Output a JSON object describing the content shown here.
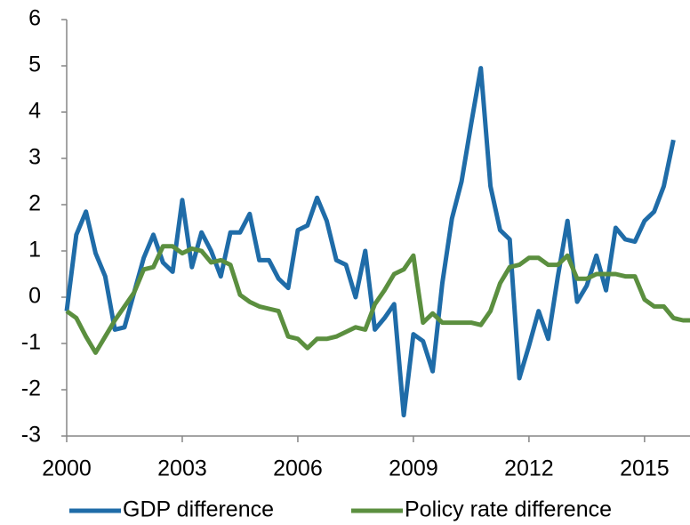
{
  "chart_data": {
    "type": "line",
    "xlim": [
      2000,
      2016.18
    ],
    "xticks": [
      2000,
      2003,
      2006,
      2009,
      2012,
      2015
    ],
    "ylim": [
      -3,
      6
    ],
    "yticks": [
      -3,
      -2,
      -1,
      0,
      1,
      2,
      3,
      4,
      5,
      6
    ],
    "grid": false,
    "legend": "bottom",
    "series": [
      {
        "name": "GDP difference",
        "color": "#1f6ca8",
        "x": [
          2000.0,
          2000.25,
          2000.5,
          2000.75,
          2001.0,
          2001.25,
          2001.5,
          2001.75,
          2002.0,
          2002.25,
          2002.5,
          2002.75,
          2003.0,
          2003.25,
          2003.5,
          2003.75,
          2004.0,
          2004.25,
          2004.5,
          2004.75,
          2005.0,
          2005.25,
          2005.5,
          2005.75,
          2006.0,
          2006.25,
          2006.5,
          2006.75,
          2007.0,
          2007.25,
          2007.5,
          2007.75,
          2008.0,
          2008.25,
          2008.5,
          2008.75,
          2009.0,
          2009.25,
          2009.5,
          2009.75,
          2010.0,
          2010.25,
          2010.5,
          2010.75,
          2011.0,
          2011.25,
          2011.5,
          2011.75,
          2012.0,
          2012.25,
          2012.5,
          2012.75,
          2013.0,
          2013.25,
          2013.5,
          2013.75,
          2014.0,
          2014.25,
          2014.5,
          2014.75,
          2015.0,
          2015.25,
          2015.5,
          2015.75
        ],
        "values": [
          -0.3,
          1.35,
          1.85,
          0.95,
          0.45,
          -0.7,
          -0.65,
          0.1,
          0.85,
          1.35,
          0.75,
          0.55,
          2.1,
          0.65,
          1.4,
          1.0,
          0.45,
          1.4,
          1.4,
          1.8,
          0.8,
          0.8,
          0.4,
          0.2,
          1.45,
          1.55,
          2.15,
          1.65,
          0.8,
          0.7,
          0.0,
          1.0,
          -0.7,
          -0.45,
          -0.15,
          -2.55,
          -0.8,
          -0.95,
          -1.6,
          0.3,
          1.7,
          2.5,
          3.75,
          4.95,
          2.4,
          1.45,
          1.25,
          -1.75,
          -1.05,
          -0.3,
          -0.9,
          0.45,
          1.65,
          -0.1,
          0.25,
          0.9,
          0.15,
          1.5,
          1.25,
          1.2,
          1.65,
          1.85,
          2.4,
          3.4
        ]
      },
      {
        "name": "Policy rate difference",
        "color": "#5b8f3f",
        "x": [
          2000.0,
          2000.25,
          2000.5,
          2000.75,
          2001.0,
          2001.25,
          2001.5,
          2001.75,
          2002.0,
          2002.25,
          2002.5,
          2002.75,
          2003.0,
          2003.25,
          2003.5,
          2003.75,
          2004.0,
          2004.25,
          2004.5,
          2004.75,
          2005.0,
          2005.25,
          2005.5,
          2005.75,
          2006.0,
          2006.25,
          2006.5,
          2006.75,
          2007.0,
          2007.25,
          2007.5,
          2007.75,
          2008.0,
          2008.25,
          2008.5,
          2008.75,
          2009.0,
          2009.1,
          2009.25,
          2009.5,
          2009.75,
          2010.0,
          2010.25,
          2010.5,
          2010.75,
          2011.0,
          2011.25,
          2011.5,
          2011.75,
          2012.0,
          2012.25,
          2012.5,
          2012.75,
          2013.0,
          2013.25,
          2013.5,
          2013.75,
          2014.0,
          2014.25,
          2014.5,
          2014.75,
          2015.0,
          2015.25,
          2015.5,
          2015.75,
          2016.0,
          2016.18
        ],
        "values": [
          -0.3,
          -0.45,
          -0.85,
          -1.2,
          -0.85,
          -0.5,
          -0.2,
          0.1,
          0.6,
          0.65,
          1.1,
          1.1,
          0.95,
          1.05,
          1.0,
          0.75,
          0.8,
          0.7,
          0.05,
          -0.1,
          -0.2,
          -0.25,
          -0.3,
          -0.85,
          -0.9,
          -1.1,
          -0.9,
          -0.9,
          -0.85,
          -0.75,
          -0.65,
          -0.7,
          -0.15,
          0.15,
          0.5,
          0.6,
          0.9,
          0.3,
          -0.55,
          -0.35,
          -0.55,
          -0.55,
          -0.55,
          -0.55,
          -0.6,
          -0.3,
          0.3,
          0.65,
          0.7,
          0.85,
          0.85,
          0.7,
          0.7,
          0.9,
          0.4,
          0.4,
          0.5,
          0.5,
          0.5,
          0.45,
          0.45,
          -0.05,
          -0.2,
          -0.2,
          -0.45,
          -0.5,
          -0.5
        ]
      }
    ]
  }
}
